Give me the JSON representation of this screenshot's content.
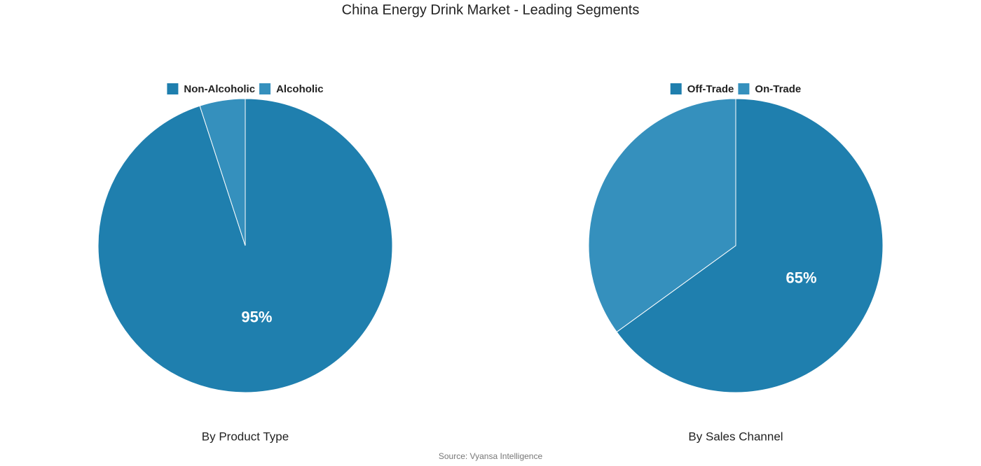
{
  "title": "China Energy Drink Market - Leading Segments",
  "source": "Source: Vyansa Intelligence",
  "chart_data": [
    {
      "type": "pie",
      "subtitle": "By Product Type",
      "categories": [
        "Non-Alcoholic",
        "Alcoholic"
      ],
      "values": [
        95,
        5
      ],
      "value_labels": [
        "95%",
        null
      ],
      "colors": [
        "#1f7fae",
        "#3590bd"
      ]
    },
    {
      "type": "pie",
      "subtitle": "By Sales Channel",
      "categories": [
        "Off-Trade",
        "On-Trade"
      ],
      "values": [
        65,
        35
      ],
      "value_labels": [
        "65%",
        null
      ],
      "colors": [
        "#1f7fae",
        "#3590bd"
      ]
    }
  ]
}
